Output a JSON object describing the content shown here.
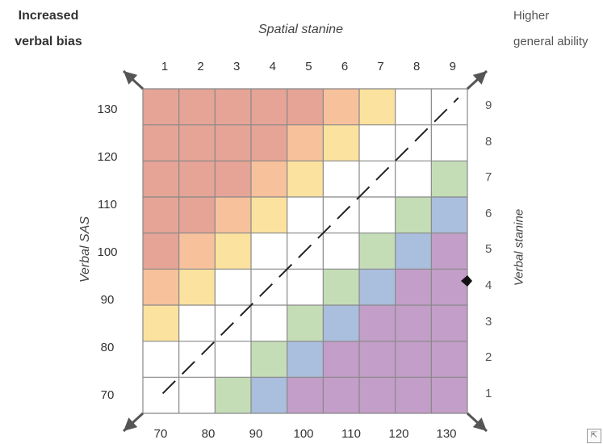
{
  "corner_top_left": {
    "line1": "Increased",
    "line2": "verbal bias"
  },
  "corner_top_right": {
    "line1": "Higher",
    "line2": "general ability"
  },
  "top_axis_title": "Spatial stanine",
  "left_axis_title": "Verbal SAS",
  "right_axis_title": "Verbal stanine",
  "top_ticks": [
    "1",
    "2",
    "3",
    "4",
    "5",
    "6",
    "7",
    "8",
    "9"
  ],
  "left_ticks": [
    "130",
    "120",
    "110",
    "100",
    "90",
    "80",
    "70"
  ],
  "right_ticks": [
    "9",
    "8",
    "7",
    "6",
    "5",
    "4",
    "3",
    "2",
    "1"
  ],
  "bottom_ticks": [
    "70",
    "80",
    "90",
    "100",
    "110",
    "120",
    "130"
  ],
  "colors": {
    "red": "#e5a496",
    "orange": "#f7c19c",
    "yellow": "#fbe29e",
    "white": "#ffffff",
    "green": "#c4ddb7",
    "blue": "#aabedd",
    "purple": "#c39ec8",
    "grid_line": "#888888",
    "arrow": "#555555"
  },
  "grid_rows": [
    [
      "red",
      "red",
      "red",
      "red",
      "red",
      "orange",
      "yellow",
      "white",
      "white"
    ],
    [
      "red",
      "red",
      "red",
      "red",
      "orange",
      "yellow",
      "white",
      "white",
      "white"
    ],
    [
      "red",
      "red",
      "red",
      "orange",
      "yellow",
      "white",
      "white",
      "white",
      "green"
    ],
    [
      "red",
      "red",
      "orange",
      "yellow",
      "white",
      "white",
      "white",
      "green",
      "blue"
    ],
    [
      "red",
      "orange",
      "yellow",
      "white",
      "white",
      "white",
      "green",
      "blue",
      "purple"
    ],
    [
      "orange",
      "yellow",
      "white",
      "white",
      "white",
      "green",
      "blue",
      "purple",
      "purple"
    ],
    [
      "yellow",
      "white",
      "white",
      "white",
      "green",
      "blue",
      "purple",
      "purple",
      "purple"
    ],
    [
      "white",
      "white",
      "white",
      "green",
      "blue",
      "purple",
      "purple",
      "purple",
      "purple"
    ],
    [
      "white",
      "white",
      "green",
      "blue",
      "purple",
      "purple",
      "purple",
      "purple",
      "purple"
    ]
  ],
  "icons": {
    "resize": "resize-icon"
  }
}
